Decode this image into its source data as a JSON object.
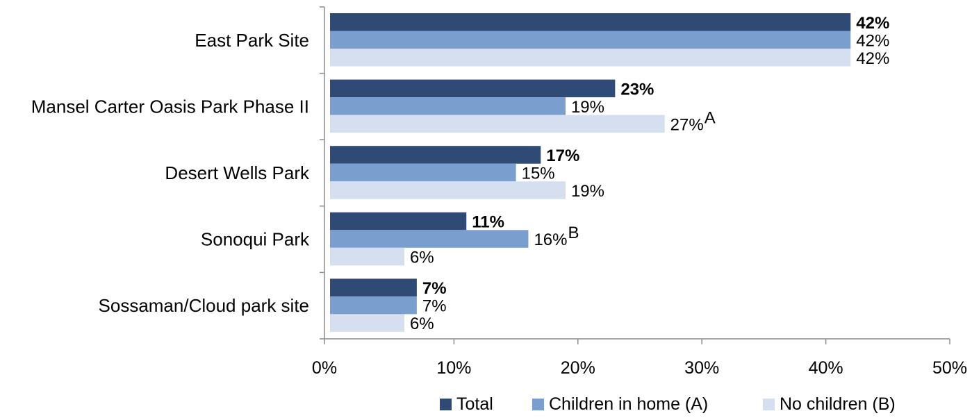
{
  "chart_data": {
    "type": "bar",
    "orientation": "horizontal",
    "categories": [
      "East Park Site",
      "Mansel Carter Oasis Park Phase II",
      "Desert Wells Park",
      "Sonoqui Park",
      "Sossaman/Cloud park site"
    ],
    "series": [
      {
        "name": "Total",
        "color": "#2e4a75",
        "values": [
          42,
          23,
          17,
          11,
          7
        ],
        "labels": [
          "42%",
          "23%",
          "17%",
          "11%",
          "7%"
        ],
        "bold": true
      },
      {
        "name": "Children in home (A)",
        "color": "#7a9fcf",
        "values": [
          42,
          19,
          15,
          16,
          7
        ],
        "labels": [
          "42%",
          "19%",
          "15%",
          "16%",
          "7%"
        ],
        "superscripts": [
          "",
          "",
          "",
          "B",
          ""
        ]
      },
      {
        "name": "No children (B)",
        "color": "#d5dff0",
        "values": [
          42,
          27,
          19,
          6,
          6
        ],
        "labels": [
          "42%",
          "27%",
          "19%",
          "6%",
          "6%"
        ],
        "superscripts": [
          "",
          "A",
          "",
          "",
          ""
        ]
      }
    ],
    "xlim": [
      0,
      50
    ],
    "xticks": [
      "0%",
      "10%",
      "20%",
      "30%",
      "40%",
      "50%"
    ],
    "grid": false,
    "legend_position": "bottom"
  }
}
